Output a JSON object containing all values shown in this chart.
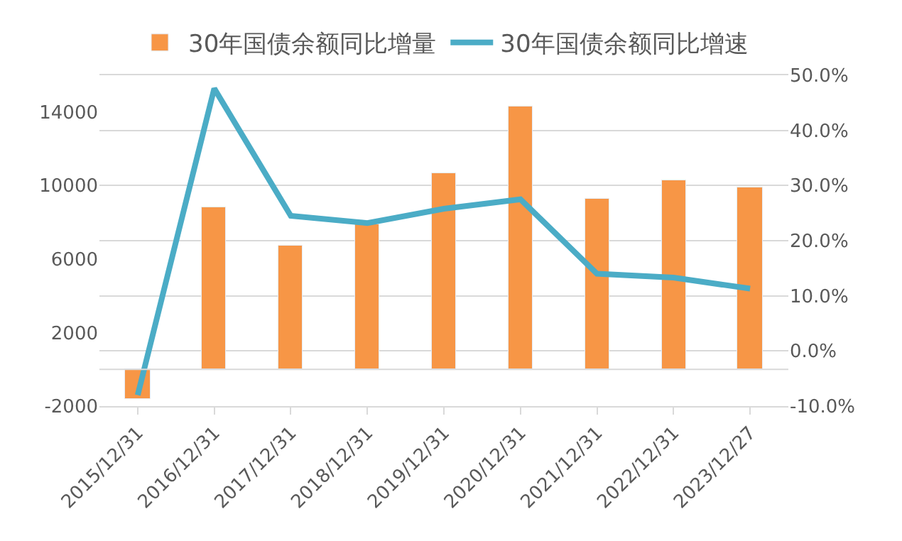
{
  "chart_data": {
    "type": "bar",
    "categories": [
      "2015/12/31",
      "2016/12/31",
      "2017/12/31",
      "2018/12/31",
      "2019/12/31",
      "2020/12/31",
      "2021/12/31",
      "2022/12/31",
      "2023/12/27"
    ],
    "series": [
      {
        "name": "30年国债余额同比增量",
        "color": "#f79646",
        "values": [
          -1600,
          8800,
          6700,
          7900,
          10700,
          14300,
          9300,
          10300,
          9900
        ]
      },
      {
        "name": "30年国债余额同比增速",
        "type": "line",
        "axis": "y2",
        "color": "#4bacc6",
        "values": [
          -8.0,
          47.6,
          24.5,
          23.2,
          25.8,
          27.5,
          14.0,
          13.3,
          11.3
        ]
      }
    ],
    "ylim": [
      -2000,
      16000
    ],
    "yticks": [
      -2000,
      2000,
      6000,
      10000,
      14000
    ],
    "y2lim": [
      -10,
      50
    ],
    "y2ticks": [
      {
        "value": -10,
        "label": "-10.0%"
      },
      {
        "value": 0,
        "label": "0.0%"
      },
      {
        "value": 10,
        "label": "10.0%"
      },
      {
        "value": 20,
        "label": "20.0%"
      },
      {
        "value": 30,
        "label": "30.0%"
      },
      {
        "value": 40,
        "label": "40.0%"
      },
      {
        "value": 50,
        "label": "50.0%"
      }
    ],
    "grid": "y2",
    "legend": "top",
    "marker": "none",
    "line_style": "solid"
  }
}
